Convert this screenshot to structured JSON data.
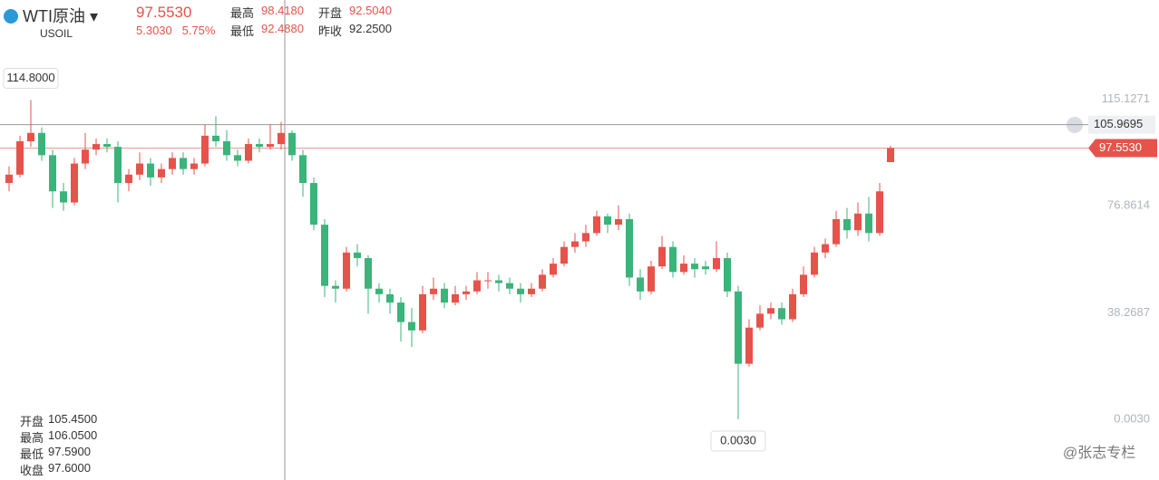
{
  "header": {
    "title": "WTI原油",
    "symbol": "USOIL",
    "price": "97.5530",
    "change": "5.3030",
    "change_pct": "5.75%",
    "stats": [
      {
        "label": "最高",
        "value": "98.4180"
      },
      {
        "label": "开盘",
        "value": "92.5040"
      },
      {
        "label": "最低",
        "value": "92.4880"
      },
      {
        "label": "昨收",
        "value": "92.2500"
      }
    ]
  },
  "crosshair": {
    "ohlc": [
      {
        "label": "开盘",
        "value": "105.4500"
      },
      {
        "label": "最高",
        "value": "106.0500"
      },
      {
        "label": "最低",
        "value": "97.5900"
      },
      {
        "label": "收盘",
        "value": "97.6000"
      }
    ]
  },
  "watermark": "@张志专栏",
  "chart_data": {
    "type": "candlestick",
    "up_color": "#e5534b",
    "down_color": "#3cb37a",
    "ylim": [
      -21.8,
      150.8
    ],
    "yticks": [
      115.1271,
      76.8614,
      38.2687,
      {
        "value": 0.003,
        "label": "0.0030"
      }
    ],
    "price_line": {
      "value": 97.553,
      "label": "97.5530",
      "color": "#e5534b"
    },
    "cross_line": {
      "value": 105.9695,
      "label": "105.9695"
    },
    "annotations": [
      {
        "label": "114.8000"
      },
      {
        "label": "0.0030"
      }
    ],
    "open": [
      85,
      88,
      100,
      103,
      95,
      82,
      78,
      92,
      97,
      99,
      98,
      85,
      88,
      92,
      87,
      90,
      94,
      90,
      92,
      102,
      100,
      95,
      93,
      99,
      98,
      99,
      103,
      95,
      85,
      70,
      48,
      47,
      60,
      58,
      47,
      45,
      42,
      35,
      32,
      45,
      47,
      42,
      45,
      46,
      50,
      50,
      49,
      47,
      45,
      47,
      52,
      56,
      62,
      64,
      67,
      73,
      70,
      72,
      51,
      46,
      55,
      62,
      53,
      56,
      55,
      54,
      58,
      46,
      20,
      33,
      38,
      40,
      36,
      45,
      52,
      60,
      63,
      72,
      68,
      74,
      67,
      92.504
    ],
    "high": [
      91,
      102,
      114.8,
      105,
      97,
      85,
      94,
      103,
      101,
      101,
      100,
      90,
      96,
      94,
      92,
      96,
      96,
      94,
      106,
      109,
      104,
      97,
      101,
      101,
      106,
      107,
      104,
      97,
      87,
      72,
      50,
      62,
      63,
      59,
      49,
      47,
      44,
      40,
      48,
      51,
      49,
      48,
      48,
      53,
      53,
      52,
      51,
      49,
      49,
      54,
      58,
      64,
      67,
      70,
      75,
      74,
      77,
      74,
      54,
      57,
      66,
      64,
      59,
      58,
      57,
      64,
      60,
      48,
      36,
      41,
      42,
      42,
      47,
      55,
      62,
      65,
      75,
      76,
      78,
      80,
      85,
      98.418
    ],
    "low": [
      82,
      87,
      98,
      93,
      76,
      75,
      77,
      90,
      95,
      96,
      78,
      82,
      86,
      84,
      85,
      88,
      88,
      88,
      91,
      98,
      93,
      91,
      92,
      96,
      97,
      97,
      93,
      80,
      68,
      44,
      42,
      46,
      55,
      38,
      42,
      38,
      28,
      26,
      31,
      43,
      40,
      41,
      43,
      45,
      47,
      46,
      45,
      42,
      44,
      46,
      51,
      55,
      60,
      62,
      66,
      67,
      68,
      48,
      43,
      45,
      54,
      51,
      52,
      51,
      52,
      53,
      44,
      0.003,
      19,
      32,
      36,
      34,
      35,
      44,
      51,
      58,
      62,
      65,
      66,
      64,
      66,
      92.488
    ],
    "close": [
      88,
      100,
      103,
      95,
      82,
      78,
      92,
      97,
      99,
      98,
      85,
      88,
      92,
      87,
      90,
      94,
      90,
      92,
      102,
      100,
      95,
      93,
      99,
      98,
      99,
      103,
      95,
      85,
      70,
      48,
      47,
      60,
      58,
      47,
      45,
      42,
      35,
      32,
      45,
      47,
      42,
      45,
      46,
      50,
      50,
      49,
      47,
      45,
      47,
      52,
      56,
      62,
      64,
      67,
      73,
      70,
      72,
      51,
      46,
      55,
      62,
      53,
      56,
      54,
      54,
      58,
      46,
      20,
      33,
      38,
      40,
      36,
      45,
      52,
      60,
      63,
      72,
      68,
      74,
      67,
      82,
      97.553
    ]
  }
}
